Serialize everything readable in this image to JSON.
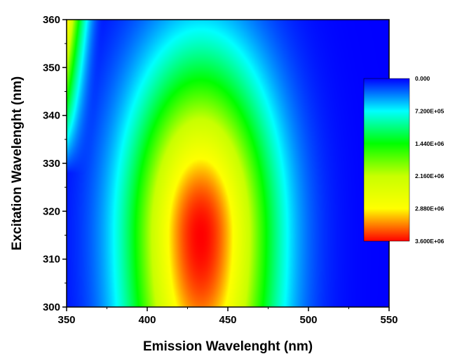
{
  "chart_data": {
    "type": "heatmap",
    "title": "",
    "xlabel": "Emission Wavelenght (nm)",
    "ylabel": "Excitation Wavelenght (nm)",
    "xlim": [
      350,
      550
    ],
    "ylim": [
      300,
      360
    ],
    "x_ticks": [
      350,
      400,
      450,
      500,
      550
    ],
    "x_tick_labels": [
      "350",
      "400",
      "450",
      "500",
      "550"
    ],
    "y_ticks": [
      300,
      310,
      320,
      330,
      340,
      350,
      360
    ],
    "y_tick_labels": [
      "300",
      "310",
      "320",
      "330",
      "340",
      "350",
      "360"
    ],
    "peak": {
      "x": 433,
      "y": 315,
      "value": 3600000
    },
    "spread": {
      "x_sigma": 30,
      "y_sigma_low": 34,
      "y_sigma_high": 24
    },
    "scatter_band": {
      "x_start": 350,
      "x_end": 358,
      "value": 3000000
    },
    "colorscale": [
      {
        "value": 0,
        "color": "#0000ff"
      },
      {
        "value": 720000,
        "color": "#00ffff"
      },
      {
        "value": 1440000,
        "color": "#00ff00"
      },
      {
        "value": 2160000,
        "color": "#c8ff00"
      },
      {
        "value": 2880000,
        "color": "#ffff00"
      },
      {
        "value": 3240000,
        "color": "#ff8000"
      },
      {
        "value": 3600000,
        "color": "#ff0000"
      }
    ],
    "legend": {
      "placement": "right",
      "labels": [
        "0.000",
        "7.200E+05",
        "1.440E+06",
        "2.160E+06",
        "2.880E+06",
        "3.600E+06"
      ],
      "values": [
        0,
        720000,
        1440000,
        2160000,
        2880000,
        3600000
      ]
    }
  }
}
